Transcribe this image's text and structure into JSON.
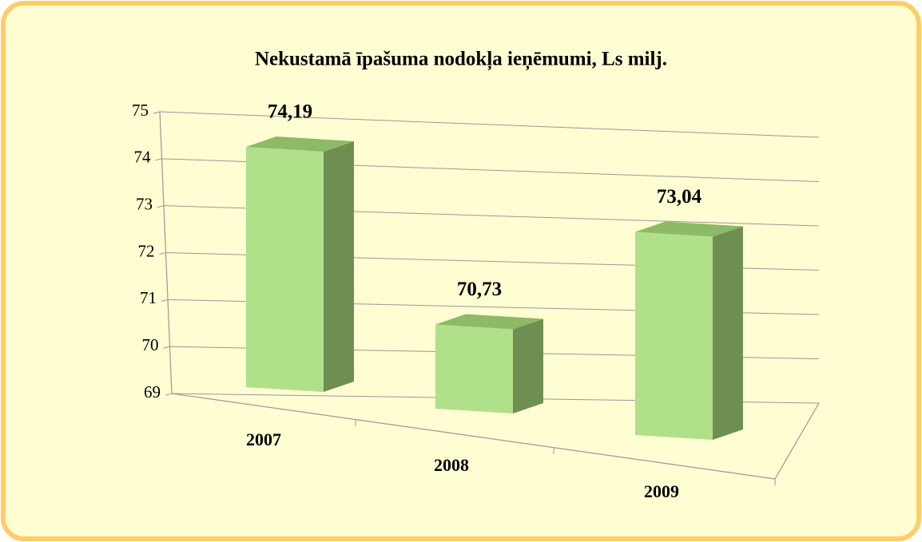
{
  "chart_data": {
    "type": "bar3d",
    "title": "Nekustamā īpašuma nodokļa ieņēmumi, Ls milj.",
    "categories": [
      "2007",
      "2008",
      "2009"
    ],
    "values": [
      74.19,
      70.73,
      73.04
    ],
    "value_labels": [
      "74,19",
      "70,73",
      "73,04"
    ],
    "color": "#b0e08a",
    "ylim": [
      69,
      75
    ],
    "yticks": [
      69,
      70,
      71,
      72,
      73,
      74,
      75
    ],
    "grid": true
  }
}
